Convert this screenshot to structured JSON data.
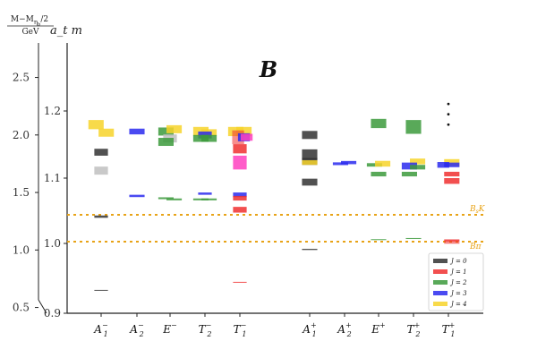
{
  "chart_data": {
    "type": "bar",
    "title": "B",
    "ylabel_left": {
      "numerator": "M−M",
      "numerator_sub": "η",
      "numerator_subsub": "b",
      "numerator_tail": "/2",
      "denominator": "GeV"
    },
    "ylabel_right": "a_t m",
    "left_axis": {
      "ticks": [
        0.5,
        1.0,
        1.5,
        2.0,
        2.5
      ],
      "tick_labels": [
        "0.5",
        "1.0",
        "1.5",
        "2.0",
        "2.5"
      ],
      "range": [
        0.45,
        2.8
      ]
    },
    "right_axis": {
      "ticks": [
        0.9,
        1.0,
        1.1,
        1.2
      ],
      "tick_labels": [
        "0.9",
        "1.0",
        "1.1",
        "1.2"
      ],
      "range": [
        0.9,
        1.2
      ]
    },
    "categories": [
      {
        "base": "A",
        "sub": "1",
        "sup": "−"
      },
      {
        "base": "A",
        "sub": "2",
        "sup": "−"
      },
      {
        "base": "E",
        "sub": "",
        "sup": "−"
      },
      {
        "base": "T",
        "sub": "2",
        "sup": "−"
      },
      {
        "base": "T",
        "sub": "1",
        "sup": "−"
      },
      {
        "base": "A",
        "sub": "1",
        "sup": "+"
      },
      {
        "base": "A",
        "sub": "2",
        "sup": "+"
      },
      {
        "base": "E",
        "sub": "",
        "sup": "+"
      },
      {
        "base": "T",
        "sub": "2",
        "sup": "+"
      },
      {
        "base": "T",
        "sub": "1",
        "sup": "+"
      }
    ],
    "thresholds": [
      {
        "label": "B_sK",
        "label_base": "B",
        "label_sub": "s",
        "label_tail": "K",
        "value": 1.22,
        "color": "#e8a317"
      },
      {
        "label": "Bπ",
        "label_base": "Bπ",
        "label_sub": "",
        "label_tail": "",
        "value": 1.0,
        "color": "#e8a317"
      }
    ],
    "series": [
      {
        "name": "J = 0",
        "legend_label": "J = 0",
        "color": "#333333"
      },
      {
        "name": "J = 1",
        "legend_label": "J = 1",
        "color": "#f03030"
      },
      {
        "name": "J = 2",
        "legend_label": "J = 2",
        "color": "#3c9a3c"
      },
      {
        "name": "J = 3",
        "legend_label": "J = 3",
        "color": "#2a2aee"
      },
      {
        "name": "J = 4",
        "legend_label": "J = 4",
        "color": "#f7d42a"
      }
    ],
    "levels": [
      {
        "cat": 0,
        "dx": -0.15,
        "w": 0.45,
        "center": 2.09,
        "half": 0.04,
        "j": 4
      },
      {
        "cat": 0,
        "dx": 0.15,
        "w": 0.45,
        "center": 2.02,
        "half": 0.035,
        "j": 4
      },
      {
        "cat": 0,
        "dx": 0.0,
        "w": 0.4,
        "center": 1.85,
        "half": 0.03,
        "j": 0
      },
      {
        "cat": 0,
        "dx": 0.0,
        "w": 0.4,
        "center": 1.69,
        "half": 0.035,
        "j": 0,
        "faded": true
      },
      {
        "cat": 0,
        "dx": 0.0,
        "w": 0.4,
        "center": 1.29,
        "half": 0.01,
        "j": 0
      },
      {
        "cat": 0,
        "dx": 0.0,
        "w": 0.4,
        "center": 0.65,
        "half": 0.003,
        "j": 0
      },
      {
        "cat": 1,
        "dx": 0.0,
        "w": 0.45,
        "center": 2.03,
        "half": 0.025,
        "j": 3
      },
      {
        "cat": 1,
        "dx": 0.0,
        "w": 0.45,
        "center": 1.47,
        "half": 0.01,
        "j": 3
      },
      {
        "cat": 2,
        "dx": -0.12,
        "w": 0.45,
        "center": 2.03,
        "half": 0.035,
        "j": 2
      },
      {
        "cat": 2,
        "dx": 0.12,
        "w": 0.45,
        "center": 2.05,
        "half": 0.035,
        "j": 4
      },
      {
        "cat": 2,
        "dx": 0.0,
        "w": 0.4,
        "center": 1.97,
        "half": 0.035,
        "j": 2,
        "faded": true
      },
      {
        "cat": 2,
        "dx": -0.12,
        "w": 0.45,
        "center": 1.94,
        "half": 0.035,
        "j": 2
      },
      {
        "cat": 2,
        "dx": -0.12,
        "w": 0.45,
        "center": 1.45,
        "half": 0.008,
        "j": 2
      },
      {
        "cat": 2,
        "dx": 0.12,
        "w": 0.45,
        "center": 1.44,
        "half": 0.008,
        "j": 2
      },
      {
        "cat": 3,
        "dx": -0.12,
        "w": 0.45,
        "center": 2.03,
        "half": 0.04,
        "j": 4
      },
      {
        "cat": 3,
        "dx": 0.12,
        "w": 0.45,
        "center": 2.02,
        "half": 0.03,
        "j": 4
      },
      {
        "cat": 3,
        "dx": 0.0,
        "w": 0.4,
        "center": 2.0,
        "half": 0.03,
        "j": 3
      },
      {
        "cat": 3,
        "dx": -0.12,
        "w": 0.45,
        "center": 1.97,
        "half": 0.03,
        "j": 2
      },
      {
        "cat": 3,
        "dx": 0.12,
        "w": 0.45,
        "center": 1.97,
        "half": 0.03,
        "j": 2
      },
      {
        "cat": 3,
        "dx": 0.0,
        "w": 0.4,
        "center": 1.49,
        "half": 0.01,
        "j": 3
      },
      {
        "cat": 3,
        "dx": -0.12,
        "w": 0.45,
        "center": 1.44,
        "half": 0.008,
        "j": 2
      },
      {
        "cat": 3,
        "dx": 0.12,
        "w": 0.45,
        "center": 1.44,
        "half": 0.008,
        "j": 2
      },
      {
        "cat": 4,
        "dx": -0.12,
        "w": 0.45,
        "center": 2.03,
        "half": 0.04,
        "j": 4
      },
      {
        "cat": 4,
        "dx": 0.12,
        "w": 0.45,
        "center": 2.03,
        "half": 0.04,
        "j": 4
      },
      {
        "cat": 4,
        "dx": -0.05,
        "w": 0.35,
        "center": 1.98,
        "half": 0.06,
        "j": 1,
        "alpha": 0.55
      },
      {
        "cat": 4,
        "dx": 0.12,
        "w": 0.35,
        "center": 1.98,
        "half": 0.035,
        "j": 3
      },
      {
        "cat": 4,
        "dx": 0.2,
        "w": 0.35,
        "center": 1.98,
        "half": 0.03,
        "j": 1,
        "magenta": true
      },
      {
        "cat": 4,
        "dx": 0.0,
        "w": 0.4,
        "center": 1.88,
        "half": 0.04,
        "j": 1
      },
      {
        "cat": 4,
        "dx": 0.0,
        "w": 0.4,
        "center": 1.76,
        "half": 0.06,
        "j": 1,
        "magenta": true
      },
      {
        "cat": 4,
        "dx": 0.0,
        "w": 0.4,
        "center": 1.48,
        "half": 0.02,
        "j": 3
      },
      {
        "cat": 4,
        "dx": 0.0,
        "w": 0.4,
        "center": 1.45,
        "half": 0.02,
        "j": 1
      },
      {
        "cat": 4,
        "dx": 0.0,
        "w": 0.4,
        "center": 1.35,
        "half": 0.025,
        "j": 1
      },
      {
        "cat": 4,
        "dx": 0.0,
        "w": 0.4,
        "center": 0.72,
        "half": 0.003,
        "j": 1
      },
      {
        "cat": 5,
        "dx": 0.0,
        "w": 0.45,
        "center": 2.0,
        "half": 0.035,
        "j": 0
      },
      {
        "cat": 5,
        "dx": 0.0,
        "w": 0.45,
        "center": 1.83,
        "half": 0.045,
        "j": 0
      },
      {
        "cat": 5,
        "dx": 0.0,
        "w": 0.45,
        "center": 1.77,
        "half": 0.03,
        "j": 0
      },
      {
        "cat": 5,
        "dx": 0.0,
        "w": 0.45,
        "center": 1.76,
        "half": 0.02,
        "j": 4
      },
      {
        "cat": 5,
        "dx": 0.0,
        "w": 0.45,
        "center": 1.59,
        "half": 0.03,
        "j": 0
      },
      {
        "cat": 5,
        "dx": 0.0,
        "w": 0.45,
        "center": 1.005,
        "half": 0.005,
        "j": 0
      },
      {
        "cat": 6,
        "dx": -0.12,
        "w": 0.45,
        "center": 1.75,
        "half": 0.012,
        "j": 3
      },
      {
        "cat": 6,
        "dx": 0.12,
        "w": 0.45,
        "center": 1.76,
        "half": 0.014,
        "j": 3
      },
      {
        "cat": 7,
        "dx": -0.12,
        "w": 0.45,
        "center": 1.74,
        "half": 0.015,
        "j": 2
      },
      {
        "cat": 7,
        "dx": 0.12,
        "w": 0.45,
        "center": 1.75,
        "half": 0.025,
        "j": 4
      },
      {
        "cat": 7,
        "dx": 0.0,
        "w": 0.45,
        "center": 2.1,
        "half": 0.04,
        "j": 2
      },
      {
        "cat": 7,
        "dx": 0.0,
        "w": 0.45,
        "center": 1.66,
        "half": 0.02,
        "j": 2
      },
      {
        "cat": 7,
        "dx": 0.0,
        "w": 0.45,
        "center": 1.09,
        "half": 0.004,
        "j": 2
      },
      {
        "cat": 8,
        "dx": 0.0,
        "w": 0.45,
        "center": 2.07,
        "half": 0.06,
        "j": 2
      },
      {
        "cat": 8,
        "dx": 0.12,
        "w": 0.45,
        "center": 1.77,
        "half": 0.025,
        "j": 4
      },
      {
        "cat": 8,
        "dx": -0.12,
        "w": 0.45,
        "center": 1.73,
        "half": 0.03,
        "j": 3
      },
      {
        "cat": 8,
        "dx": 0.12,
        "w": 0.45,
        "center": 1.72,
        "half": 0.02,
        "j": 2
      },
      {
        "cat": 8,
        "dx": -0.12,
        "w": 0.45,
        "center": 1.66,
        "half": 0.02,
        "j": 2
      },
      {
        "cat": 8,
        "dx": 0.0,
        "w": 0.45,
        "center": 1.1,
        "half": 0.004,
        "j": 2
      },
      {
        "cat": 9,
        "dx": 0.1,
        "w": 0.45,
        "center": 1.76,
        "half": 0.03,
        "j": 4
      },
      {
        "cat": 9,
        "dx": -0.15,
        "w": 0.35,
        "center": 1.74,
        "half": 0.025,
        "j": 3
      },
      {
        "cat": 9,
        "dx": 0.1,
        "w": 0.45,
        "center": 1.74,
        "half": 0.02,
        "j": 3
      },
      {
        "cat": 9,
        "dx": 0.1,
        "w": 0.45,
        "center": 1.66,
        "half": 0.02,
        "j": 1
      },
      {
        "cat": 9,
        "dx": 0.1,
        "w": 0.45,
        "center": 1.6,
        "half": 0.025,
        "j": 1
      },
      {
        "cat": 9,
        "dx": 0.1,
        "w": 0.45,
        "center": 1.08,
        "half": 0.012,
        "j": 1
      },
      {
        "cat": 9,
        "dx": 0.1,
        "w": 0.45,
        "center": 1.06,
        "half": 0.003,
        "j": 1
      }
    ],
    "ellipsis_category": 9,
    "ellipsis_values": [
      2.27,
      2.18,
      2.09
    ],
    "legend_position": "bottom-right",
    "magenta_color": "#ff3fbf",
    "faded_color": "#bfbfbf"
  }
}
